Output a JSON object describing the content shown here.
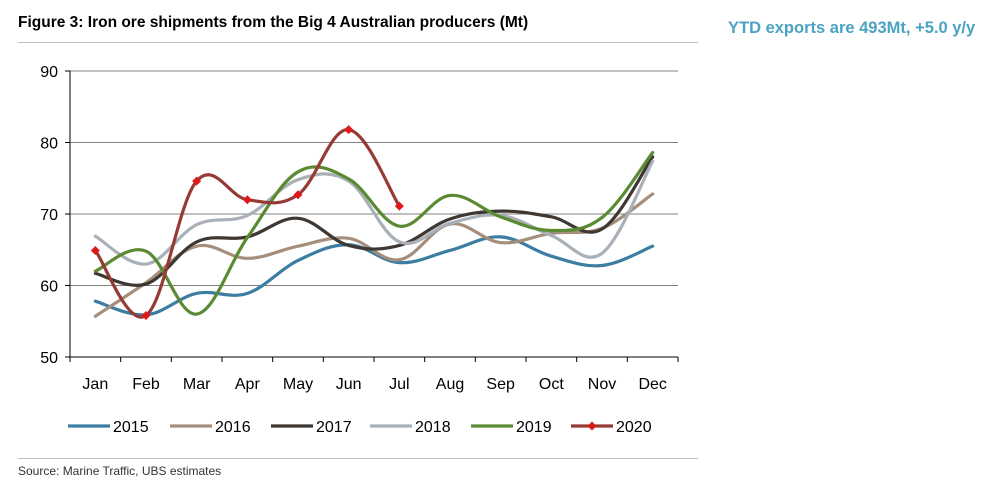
{
  "title": "Figure 3: Iron ore shipments from the Big 4 Australian producers (Mt)",
  "side_note": "YTD exports are 493Mt, +5.0 y/y",
  "source": "Source: Marine Traffic, UBS estimates",
  "chart_data": {
    "type": "line",
    "title": "Figure 3: Iron ore shipments from the Big 4 Australian producers (Mt)",
    "xlabel": "",
    "ylabel": "",
    "categories": [
      "Jan",
      "Feb",
      "Mar",
      "Apr",
      "May",
      "Jun",
      "Jul",
      "Aug",
      "Sep",
      "Oct",
      "Nov",
      "Dec"
    ],
    "ylim": [
      50,
      90
    ],
    "yticks": [
      50,
      60,
      70,
      80,
      90
    ],
    "grid": true,
    "legend": "bottom",
    "series": [
      {
        "name": "2015",
        "color": "#3b7ea1",
        "values": [
          57.8,
          55.9,
          58.9,
          58.9,
          63.5,
          65.7,
          63.2,
          64.9,
          66.8,
          64.1,
          62.8,
          65.5
        ]
      },
      {
        "name": "2016",
        "color": "#a58f7c",
        "values": [
          55.7,
          60.4,
          65.5,
          63.8,
          65.5,
          66.6,
          63.6,
          68.6,
          66.0,
          67.3,
          68.0,
          72.8
        ]
      },
      {
        "name": "2017",
        "color": "#3f3731",
        "values": [
          61.7,
          60.2,
          66.1,
          66.8,
          69.4,
          65.6,
          65.6,
          69.3,
          70.4,
          69.6,
          67.9,
          78.0
        ]
      },
      {
        "name": "2018",
        "color": "#a9b0b7",
        "values": [
          66.9,
          63.0,
          68.5,
          69.8,
          74.8,
          74.6,
          66.1,
          68.7,
          69.8,
          67.0,
          64.5,
          77.4
        ]
      },
      {
        "name": "2019",
        "color": "#5a8a32",
        "values": [
          62.0,
          64.8,
          56.0,
          66.7,
          75.9,
          74.9,
          68.3,
          72.6,
          69.6,
          67.7,
          69.5,
          78.6
        ]
      },
      {
        "name": "2020",
        "color": "#963a35",
        "marker_color": "#e01818",
        "values": [
          64.9,
          55.8,
          74.6,
          72.0,
          72.7,
          81.8,
          71.1,
          null,
          null,
          null,
          null,
          null
        ]
      }
    ]
  }
}
